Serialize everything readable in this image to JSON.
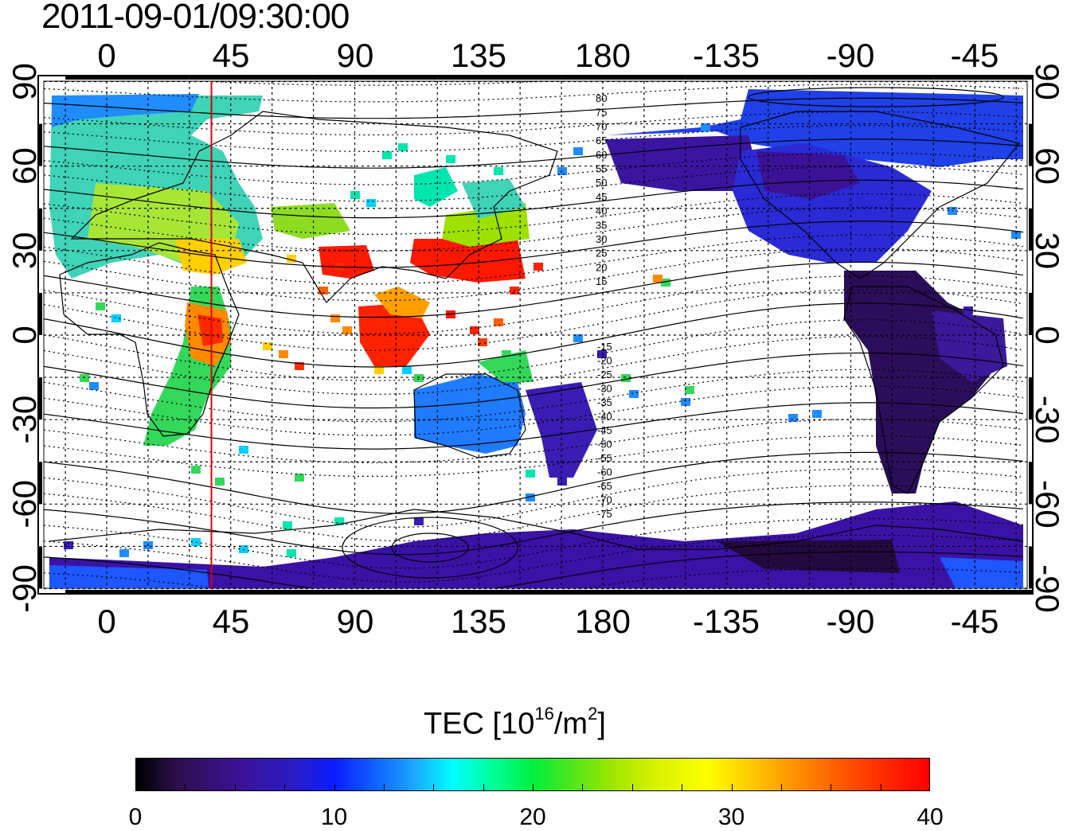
{
  "title": "2011-09-01/09:30:00",
  "top_lon_labels": [
    "0",
    "45",
    "90",
    "135",
    "180",
    "-135",
    "-90",
    "-45"
  ],
  "bottom_lon_labels": [
    "0",
    "45",
    "90",
    "135",
    "180",
    "-135",
    "-90",
    "-45"
  ],
  "left_lat_labels": [
    "90",
    "60",
    "30",
    "0",
    "-30",
    "-60",
    "-90"
  ],
  "right_lat_labels": [
    "90",
    "60",
    "30",
    "0",
    "-30",
    "-60",
    "-90"
  ],
  "contour_labels_upper": [
    "80",
    "75",
    "70",
    "65",
    "60",
    "55",
    "50",
    "45",
    "40",
    "35",
    "30",
    "25",
    "20",
    "15"
  ],
  "contour_labels_lower": [
    "-15",
    "-20",
    "-25",
    "-30",
    "-35",
    "-40",
    "-45",
    "-50",
    "-55",
    "-60",
    "-65",
    "-70",
    "-75"
  ],
  "meridian_line_lon": 38,
  "meridian_line_color": "#e00000",
  "colorbar": {
    "title_prefix": "TEC  [10",
    "title_sup1": "16",
    "title_mid": "/m",
    "title_sup2": "2",
    "title_suffix": "]",
    "ticks": [
      "0",
      "10",
      "20",
      "30",
      "40"
    ],
    "min": 0,
    "max": 40
  }
}
